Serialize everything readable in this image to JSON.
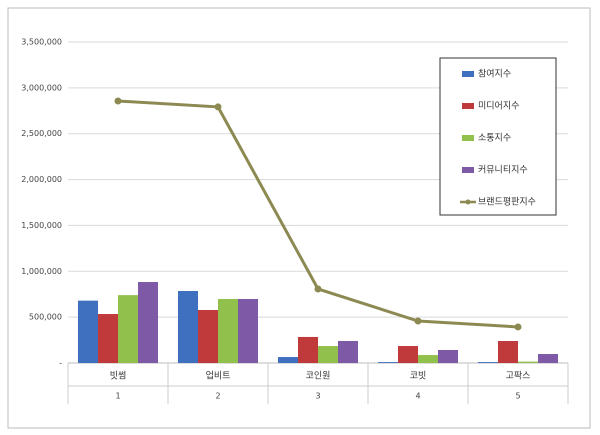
{
  "chart_data": {
    "type": "bar",
    "categories": [
      "빗썸",
      "업비트",
      "코인원",
      "코빗",
      "고팍스"
    ],
    "category_numbers": [
      1,
      2,
      3,
      4,
      5
    ],
    "series": [
      {
        "name": "참여지수",
        "color": "#3f6fbf",
        "values": [
          680000,
          785000,
          65000,
          10000,
          10000
        ]
      },
      {
        "name": "미디어지수",
        "color": "#c0393b",
        "values": [
          534000,
          578000,
          284000,
          185000,
          240000
        ]
      },
      {
        "name": "소통지수",
        "color": "#92c04d",
        "values": [
          740000,
          698000,
          185000,
          87000,
          15000
        ]
      },
      {
        "name": "커뮤니티지수",
        "color": "#7e5aa6",
        "values": [
          883000,
          698000,
          240000,
          142000,
          98000
        ]
      },
      {
        "name": "브랜드평판지수",
        "color": "#8c8a52",
        "type": "line",
        "values": [
          2857000,
          2792000,
          807000,
          458000,
          393000
        ]
      }
    ],
    "ylim": [
      0,
      3500000
    ],
    "yticks": [
      {
        "value": 0,
        "label": "-"
      },
      {
        "value": 500000,
        "label": "500,000"
      },
      {
        "value": 1000000,
        "label": "1,000,000"
      },
      {
        "value": 1500000,
        "label": "1,500,000"
      },
      {
        "value": 2000000,
        "label": "2,000,000"
      },
      {
        "value": 2500000,
        "label": "2,500,000"
      },
      {
        "value": 3000000,
        "label": "3,000,000"
      },
      {
        "value": 3500000,
        "label": "3,500,000"
      }
    ],
    "grid": true,
    "legend": "right"
  }
}
